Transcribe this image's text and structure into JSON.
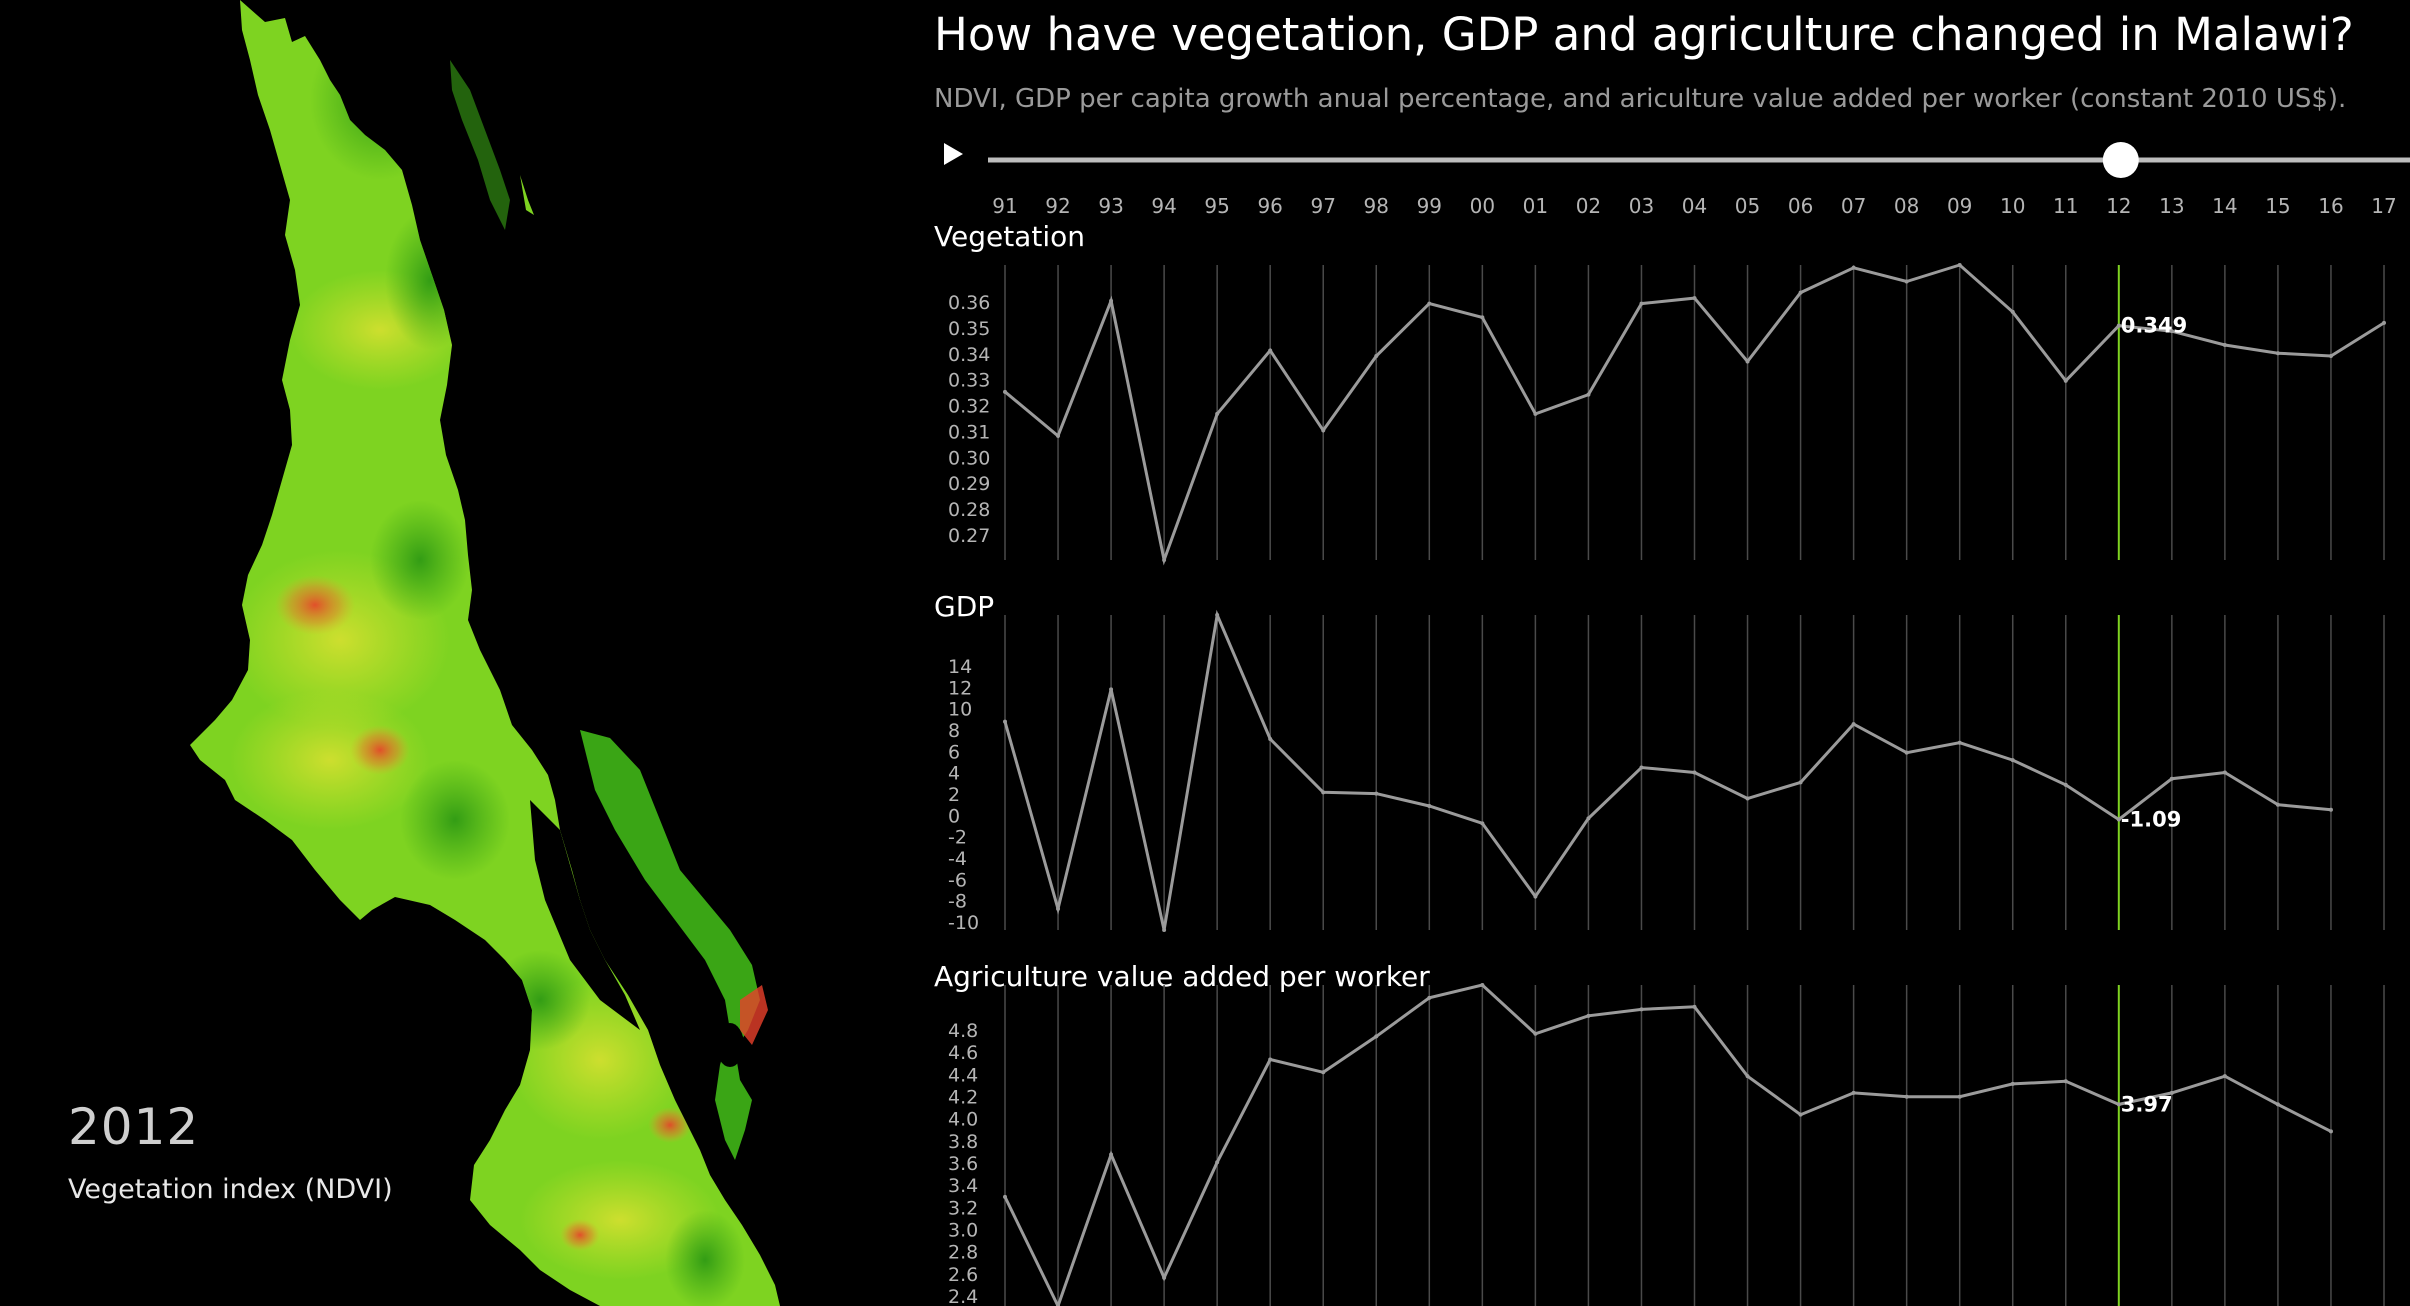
{
  "header": {
    "title": "How have vegetation, GDP and agriculture changed in Malawi?",
    "subtitle": "NDVI, GDP per capita growth anual percentage, and ariculture value added per worker (constant 2010 US$)."
  },
  "map": {
    "year": "2012",
    "caption": "Vegetation index (NDVI)",
    "colors": {
      "base": "#7ed321",
      "dark": "#3aa515",
      "yellow": "#d6e030",
      "red": "#e8402a"
    }
  },
  "timeline": {
    "play_icon": "play-icon",
    "years": [
      "91",
      "92",
      "93",
      "94",
      "95",
      "96",
      "97",
      "98",
      "99",
      "00",
      "01",
      "02",
      "03",
      "04",
      "05",
      "06",
      "07",
      "08",
      "09",
      "10",
      "11",
      "12",
      "13",
      "14",
      "15",
      "16",
      "17"
    ],
    "selected": "12"
  },
  "colors": {
    "line": "#9b9b9b",
    "grid": "#4a4a4a",
    "highlight": "#7ed321",
    "axis_text": "#b5b5b5"
  },
  "chart_data": [
    {
      "type": "line",
      "title": "Vegetation",
      "x": [
        "91",
        "92",
        "93",
        "94",
        "95",
        "96",
        "97",
        "98",
        "99",
        "00",
        "01",
        "02",
        "03",
        "04",
        "05",
        "06",
        "07",
        "08",
        "09",
        "10",
        "11",
        "12",
        "13",
        "14",
        "15",
        "16",
        "17"
      ],
      "values": [
        0.325,
        0.309,
        0.358,
        0.264,
        0.317,
        0.34,
        0.311,
        0.338,
        0.357,
        0.352,
        0.317,
        0.324,
        0.357,
        0.359,
        0.336,
        0.361,
        0.37,
        0.365,
        0.371,
        0.354,
        0.329,
        0.349,
        0.347,
        0.342,
        0.339,
        0.338,
        0.35
      ],
      "yticks": [
        "0.36",
        "0.35",
        "0.34",
        "0.33",
        "0.32",
        "0.31",
        "0.30",
        "0.29",
        "0.28",
        "0.27"
      ],
      "ylim": [
        0.264,
        0.371
      ],
      "highlight": {
        "x": "12",
        "label": "0.349"
      }
    },
    {
      "type": "line",
      "title": "GDP",
      "x": [
        "91",
        "92",
        "93",
        "94",
        "95",
        "96",
        "97",
        "98",
        "99",
        "00",
        "01",
        "02",
        "03",
        "04",
        "05",
        "06",
        "07",
        "08",
        "09",
        "10",
        "11",
        "12",
        "13",
        "14",
        "15",
        "16",
        "17"
      ],
      "values": [
        6.8,
        -8.3,
        9.4,
        -10.0,
        15.4,
        5.4,
        1.1,
        1.0,
        0.0,
        -1.4,
        -7.3,
        -1.0,
        3.1,
        2.7,
        0.6,
        1.9,
        6.6,
        4.3,
        5.1,
        3.7,
        1.7,
        -1.09,
        2.2,
        2.7,
        0.1,
        -0.3,
        null
      ],
      "yticks": [
        "14",
        "12",
        "10",
        "8",
        "6",
        "4",
        "2",
        "0",
        "-2",
        "-4",
        "-6",
        "-8",
        "-10"
      ],
      "ylim": [
        -10,
        15.4
      ],
      "highlight": {
        "x": "12",
        "label": "-1.09"
      }
    },
    {
      "type": "line",
      "title": "Agriculture value added per worker",
      "x": [
        "91",
        "92",
        "93",
        "94",
        "95",
        "96",
        "97",
        "98",
        "99",
        "00",
        "01",
        "02",
        "03",
        "04",
        "05",
        "06",
        "07",
        "08",
        "09",
        "10",
        "11",
        "12",
        "13",
        "14",
        "15",
        "16",
        "17"
      ],
      "values": [
        3.25,
        2.4,
        3.58,
        2.62,
        3.52,
        4.32,
        4.22,
        4.5,
        4.8,
        4.9,
        4.52,
        4.66,
        4.71,
        4.73,
        4.19,
        3.89,
        4.06,
        4.03,
        4.03,
        4.13,
        4.15,
        3.97,
        4.06,
        4.19,
        3.97,
        3.76,
        null
      ],
      "yticks": [
        "4.8",
        "4.6",
        "4.4",
        "4.2",
        "4.0",
        "3.8",
        "3.6",
        "3.4",
        "3.2",
        "3.0",
        "2.8",
        "2.6",
        "2.4"
      ],
      "ylim": [
        2.4,
        4.9
      ],
      "highlight": {
        "x": "12",
        "label": "3.97"
      }
    }
  ]
}
